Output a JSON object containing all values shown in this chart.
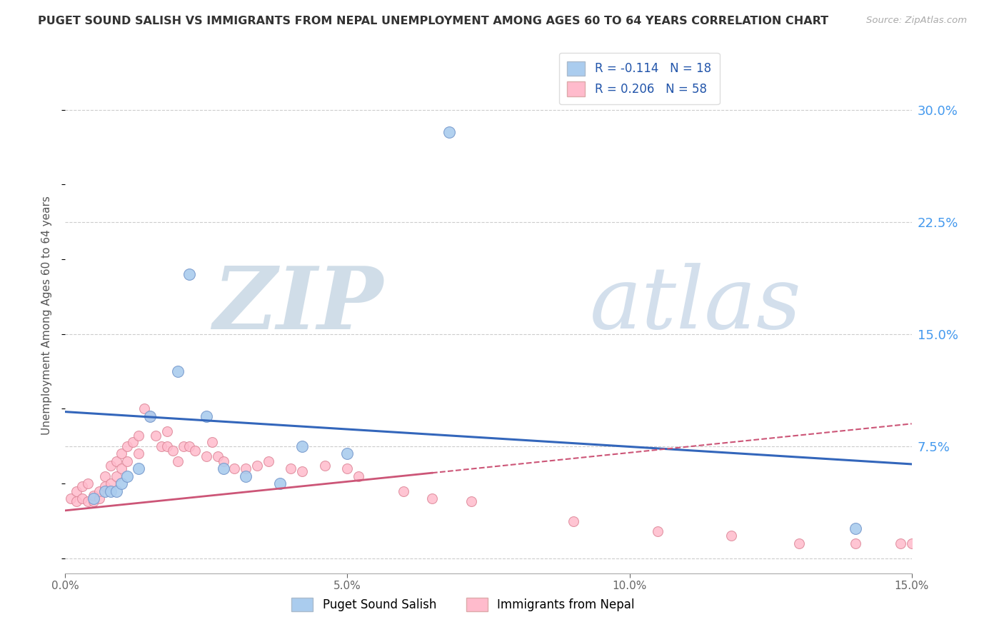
{
  "title": "PUGET SOUND SALISH VS IMMIGRANTS FROM NEPAL UNEMPLOYMENT AMONG AGES 60 TO 64 YEARS CORRELATION CHART",
  "source": "Source: ZipAtlas.com",
  "ylabel": "Unemployment Among Ages 60 to 64 years",
  "xlim": [
    0.0,
    0.15
  ],
  "ylim": [
    -0.01,
    0.335
  ],
  "background_color": "#ffffff",
  "grid_color": "#cccccc",
  "series1_color": "#aaccee",
  "series1_edgecolor": "#7799cc",
  "series2_color": "#ffbbcc",
  "series2_edgecolor": "#dd8899",
  "line1_color": "#3366bb",
  "line2_color": "#cc5577",
  "legend_label1": "R = -0.114   N = 18",
  "legend_label2": "R = 0.206   N = 58",
  "legend_label_series1": "Puget Sound Salish",
  "legend_label_series2": "Immigrants from Nepal",
  "R1": -0.114,
  "R2": 0.206,
  "salish_x": [
    0.005,
    0.007,
    0.008,
    0.009,
    0.01,
    0.011,
    0.013,
    0.015,
    0.02,
    0.022,
    0.025,
    0.028,
    0.032,
    0.038,
    0.042,
    0.05,
    0.068,
    0.14
  ],
  "salish_y": [
    0.04,
    0.045,
    0.045,
    0.045,
    0.05,
    0.055,
    0.06,
    0.095,
    0.125,
    0.19,
    0.095,
    0.06,
    0.055,
    0.05,
    0.075,
    0.07,
    0.285,
    0.02
  ],
  "nepal_x": [
    0.001,
    0.002,
    0.002,
    0.003,
    0.003,
    0.004,
    0.004,
    0.005,
    0.005,
    0.006,
    0.006,
    0.007,
    0.007,
    0.008,
    0.008,
    0.009,
    0.009,
    0.01,
    0.01,
    0.011,
    0.011,
    0.012,
    0.013,
    0.013,
    0.014,
    0.015,
    0.016,
    0.017,
    0.018,
    0.018,
    0.019,
    0.02,
    0.021,
    0.022,
    0.023,
    0.025,
    0.026,
    0.027,
    0.028,
    0.03,
    0.032,
    0.034,
    0.036,
    0.04,
    0.042,
    0.046,
    0.05,
    0.052,
    0.06,
    0.065,
    0.072,
    0.09,
    0.105,
    0.118,
    0.13,
    0.14,
    0.148,
    0.15
  ],
  "nepal_y": [
    0.04,
    0.038,
    0.045,
    0.04,
    0.048,
    0.038,
    0.05,
    0.038,
    0.042,
    0.04,
    0.045,
    0.048,
    0.055,
    0.05,
    0.062,
    0.055,
    0.065,
    0.06,
    0.07,
    0.065,
    0.075,
    0.078,
    0.07,
    0.082,
    0.1,
    0.095,
    0.082,
    0.075,
    0.085,
    0.075,
    0.072,
    0.065,
    0.075,
    0.075,
    0.072,
    0.068,
    0.078,
    0.068,
    0.065,
    0.06,
    0.06,
    0.062,
    0.065,
    0.06,
    0.058,
    0.062,
    0.06,
    0.055,
    0.045,
    0.04,
    0.038,
    0.025,
    0.018,
    0.015,
    0.01,
    0.01,
    0.01,
    0.01
  ],
  "trend1_x0": 0.0,
  "trend1_x1": 0.15,
  "trend1_y0": 0.098,
  "trend1_y1": 0.063,
  "trend2_x0": 0.0,
  "trend2_x1": 0.15,
  "trend2_y0": 0.032,
  "trend2_y1": 0.09
}
